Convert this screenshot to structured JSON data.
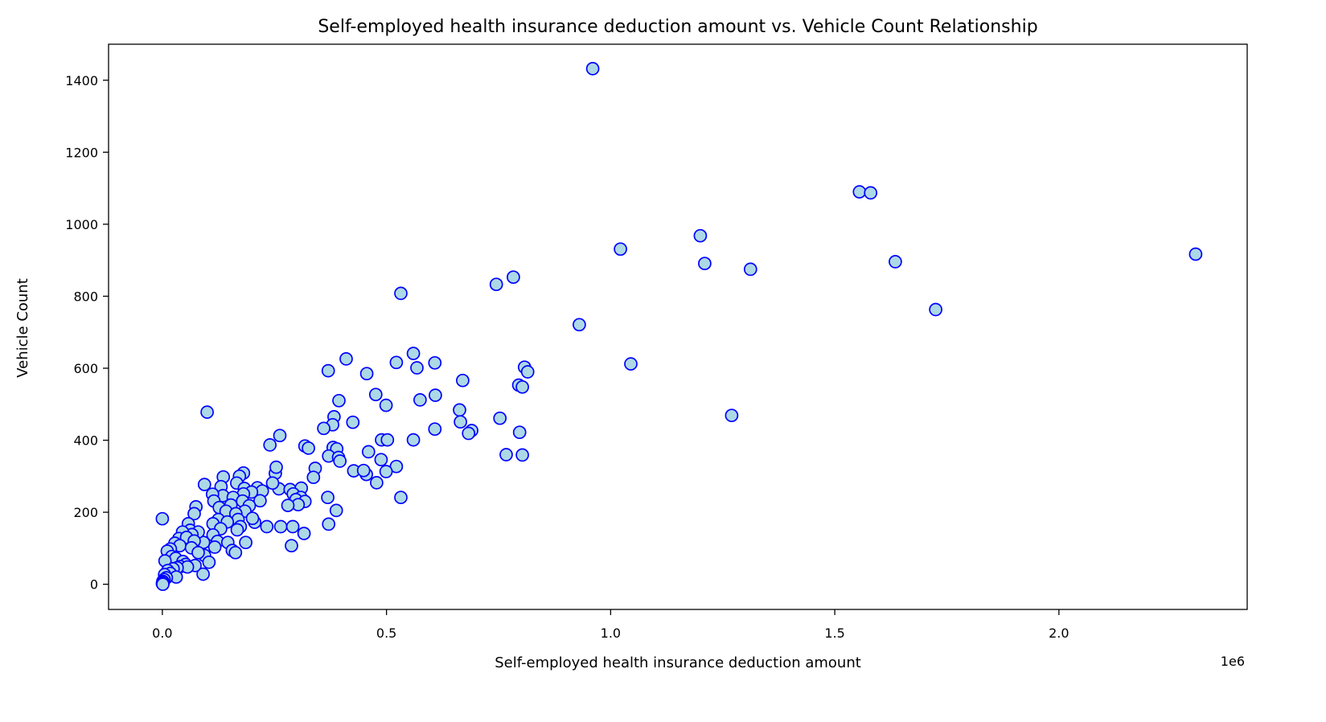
{
  "chart_data": {
    "type": "scatter",
    "title": "Self-employed health insurance deduction amount vs. Vehicle Count Relationship",
    "xlabel": "Self-employed health insurance deduction amount",
    "ylabel": "Vehicle Count",
    "x_offset_label": "1e6",
    "xlim": [
      -0.12,
      2.42
    ],
    "ylim": [
      -70,
      1500
    ],
    "xticks": [
      0.0,
      0.5,
      1.0,
      1.5,
      2.0
    ],
    "xtick_labels": [
      "0.0",
      "0.5",
      "1.0",
      "1.5",
      "2.0"
    ],
    "yticks": [
      0,
      200,
      400,
      600,
      800,
      1000,
      1200,
      1400
    ],
    "ytick_labels": [
      "0",
      "200",
      "400",
      "600",
      "800",
      "1000",
      "1200",
      "1400"
    ],
    "grid": false,
    "marker_fill": "#add8e6",
    "marker_edge": "#0000ff",
    "points": [
      [
        0.96,
        1432
      ],
      [
        1.555,
        1090
      ],
      [
        1.58,
        1087
      ],
      [
        1.2,
        968
      ],
      [
        1.022,
        931
      ],
      [
        1.21,
        891
      ],
      [
        1.635,
        896
      ],
      [
        1.312,
        875
      ],
      [
        2.305,
        917
      ],
      [
        1.725,
        763
      ],
      [
        1.045,
        612
      ],
      [
        1.27,
        469
      ],
      [
        0.93,
        721
      ],
      [
        0.532,
        808
      ],
      [
        0.745,
        833
      ],
      [
        0.783,
        853
      ],
      [
        0.56,
        641
      ],
      [
        0.608,
        615
      ],
      [
        0.522,
        616
      ],
      [
        0.41,
        626
      ],
      [
        0.37,
        593
      ],
      [
        0.456,
        585
      ],
      [
        0.568,
        601
      ],
      [
        0.67,
        566
      ],
      [
        0.808,
        603
      ],
      [
        0.815,
        590
      ],
      [
        0.795,
        553
      ],
      [
        0.803,
        548
      ],
      [
        0.609,
        525
      ],
      [
        0.575,
        512
      ],
      [
        0.476,
        527
      ],
      [
        0.499,
        497
      ],
      [
        0.394,
        510
      ],
      [
        0.663,
        484
      ],
      [
        0.665,
        451
      ],
      [
        0.753,
        461
      ],
      [
        0.425,
        450
      ],
      [
        0.383,
        465
      ],
      [
        0.38,
        443
      ],
      [
        0.36,
        433
      ],
      [
        0.608,
        431
      ],
      [
        0.69,
        427
      ],
      [
        0.683,
        419
      ],
      [
        0.797,
        422
      ],
      [
        0.262,
        413
      ],
      [
        0.24,
        387
      ],
      [
        0.318,
        384
      ],
      [
        0.326,
        378
      ],
      [
        0.381,
        380
      ],
      [
        0.389,
        376
      ],
      [
        0.371,
        356
      ],
      [
        0.393,
        352
      ],
      [
        0.396,
        342
      ],
      [
        0.46,
        368
      ],
      [
        0.489,
        401
      ],
      [
        0.502,
        401
      ],
      [
        0.56,
        401
      ],
      [
        0.488,
        346
      ],
      [
        0.522,
        327
      ],
      [
        0.499,
        313
      ],
      [
        0.455,
        305
      ],
      [
        0.427,
        315
      ],
      [
        0.449,
        316
      ],
      [
        0.478,
        282
      ],
      [
        0.532,
        241
      ],
      [
        0.767,
        360
      ],
      [
        0.803,
        359
      ],
      [
        0.341,
        322
      ],
      [
        0.337,
        297
      ],
      [
        0.252,
        308
      ],
      [
        0.254,
        325
      ],
      [
        0.26,
        265
      ],
      [
        0.246,
        281
      ],
      [
        0.212,
        268
      ],
      [
        0.223,
        259
      ],
      [
        0.285,
        263
      ],
      [
        0.31,
        267
      ],
      [
        0.292,
        251
      ],
      [
        0.309,
        241
      ],
      [
        0.298,
        235
      ],
      [
        0.318,
        230
      ],
      [
        0.303,
        221
      ],
      [
        0.28,
        219
      ],
      [
        0.369,
        241
      ],
      [
        0.388,
        205
      ],
      [
        0.371,
        167
      ],
      [
        0.264,
        160
      ],
      [
        0.291,
        160
      ],
      [
        0.316,
        141
      ],
      [
        0.288,
        107
      ],
      [
        0.233,
        160
      ],
      [
        0.218,
        232
      ],
      [
        0.206,
        172
      ],
      [
        0.181,
        309
      ],
      [
        0.172,
        300
      ],
      [
        0.136,
        298
      ],
      [
        0.094,
        277
      ],
      [
        0.131,
        271
      ],
      [
        0.166,
        281
      ],
      [
        0.183,
        266
      ],
      [
        0.199,
        256
      ],
      [
        0.181,
        251
      ],
      [
        0.135,
        246
      ],
      [
        0.112,
        250
      ],
      [
        0.115,
        231
      ],
      [
        0.158,
        241
      ],
      [
        0.179,
        231
      ],
      [
        0.194,
        218
      ],
      [
        0.184,
        203
      ],
      [
        0.153,
        220
      ],
      [
        0.127,
        213
      ],
      [
        0.142,
        203
      ],
      [
        0.164,
        196
      ],
      [
        0.201,
        183
      ],
      [
        0.169,
        180
      ],
      [
        0.125,
        180
      ],
      [
        0.113,
        168
      ],
      [
        0.145,
        173
      ],
      [
        0.174,
        160
      ],
      [
        0.13,
        154
      ],
      [
        0.167,
        151
      ],
      [
        0.113,
        137
      ],
      [
        0.123,
        119
      ],
      [
        0.092,
        116
      ],
      [
        0.117,
        103
      ],
      [
        0.146,
        116
      ],
      [
        0.186,
        116
      ],
      [
        0.156,
        94
      ],
      [
        0.163,
        88
      ],
      [
        0.094,
        80
      ],
      [
        0.104,
        61
      ],
      [
        0.091,
        28
      ],
      [
        0.1,
        478
      ],
      [
        0.075,
        215
      ],
      [
        0.071,
        196
      ],
      [
        0.058,
        168
      ],
      [
        0.062,
        150
      ],
      [
        0.08,
        145
      ],
      [
        0.066,
        138
      ],
      [
        0.045,
        145
      ],
      [
        0.037,
        127
      ],
      [
        0.028,
        114
      ],
      [
        0.054,
        130
      ],
      [
        0.071,
        120
      ],
      [
        0.039,
        107
      ],
      [
        0.018,
        98
      ],
      [
        0.011,
        92
      ],
      [
        0.065,
        101
      ],
      [
        0.08,
        88
      ],
      [
        0.021,
        77
      ],
      [
        0.03,
        72
      ],
      [
        0.006,
        65
      ],
      [
        0.046,
        63
      ],
      [
        0.052,
        55
      ],
      [
        0.073,
        52
      ],
      [
        0.04,
        49
      ],
      [
        0.056,
        48
      ],
      [
        0.033,
        46
      ],
      [
        0.024,
        43
      ],
      [
        0.012,
        38
      ],
      [
        0.018,
        30
      ],
      [
        0.005,
        27
      ],
      [
        0.031,
        20
      ],
      [
        0.009,
        18
      ],
      [
        0.004,
        13
      ],
      [
        0.001,
        8
      ],
      [
        0.002,
        5
      ],
      [
        0.0,
        2
      ],
      [
        0.001,
        0
      ],
      [
        0.0,
        182
      ]
    ]
  }
}
